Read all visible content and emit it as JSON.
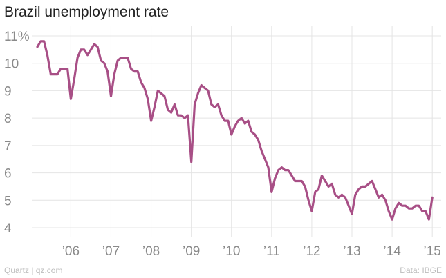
{
  "chart_data": {
    "type": "line",
    "title": "Brazil unemployment rate",
    "xlabel": "",
    "ylabel": "",
    "ylim": [
      4,
      11
    ],
    "xlim": [
      2005.167,
      2015.083
    ],
    "y_ticks": [
      {
        "value": 4,
        "label": "4"
      },
      {
        "value": 5,
        "label": "5"
      },
      {
        "value": 6,
        "label": "6"
      },
      {
        "value": 7,
        "label": "7"
      },
      {
        "value": 8,
        "label": "8"
      },
      {
        "value": 9,
        "label": "9"
      },
      {
        "value": 10,
        "label": "10"
      },
      {
        "value": 11,
        "label": "11%"
      }
    ],
    "x_ticks": [
      {
        "value": 2006,
        "label": "’06"
      },
      {
        "value": 2007,
        "label": "’07"
      },
      {
        "value": 2008,
        "label": "’08"
      },
      {
        "value": 2009,
        "label": "’09"
      },
      {
        "value": 2010,
        "label": "’10"
      },
      {
        "value": 2011,
        "label": "’11"
      },
      {
        "value": 2012,
        "label": "’12"
      },
      {
        "value": 2013,
        "label": "’13"
      },
      {
        "value": 2014,
        "label": "’14"
      },
      {
        "value": 2015,
        "label": "’15"
      }
    ],
    "grid": true,
    "series": [
      {
        "color": "#a84f86",
        "x_start": 2005.167,
        "x_step": 0.08333,
        "values": [
          10.6,
          10.8,
          10.8,
          10.3,
          9.6,
          9.6,
          9.6,
          9.8,
          9.8,
          9.8,
          8.7,
          9.4,
          10.2,
          10.5,
          10.5,
          10.3,
          10.5,
          10.7,
          10.6,
          10.1,
          10.0,
          9.7,
          8.8,
          9.6,
          10.1,
          10.2,
          10.2,
          10.2,
          9.8,
          9.7,
          9.7,
          9.3,
          9.1,
          8.7,
          7.9,
          8.4,
          9.0,
          8.9,
          8.8,
          8.3,
          8.2,
          8.5,
          8.1,
          8.1,
          8.0,
          8.1,
          6.4,
          8.5,
          8.9,
          9.2,
          9.1,
          9.0,
          8.5,
          8.4,
          8.5,
          8.1,
          7.9,
          7.9,
          7.4,
          7.7,
          7.9,
          8.0,
          7.8,
          7.9,
          7.5,
          7.4,
          7.2,
          6.8,
          6.5,
          6.2,
          5.3,
          5.8,
          6.1,
          6.2,
          6.1,
          6.1,
          5.9,
          5.7,
          5.7,
          5.7,
          5.5,
          5.0,
          4.6,
          5.3,
          5.4,
          5.9,
          5.7,
          5.5,
          5.6,
          5.2,
          5.1,
          5.2,
          5.1,
          4.8,
          4.5,
          5.2,
          5.4,
          5.5,
          5.5,
          5.6,
          5.7,
          5.4,
          5.1,
          5.2,
          5.0,
          4.6,
          4.3,
          4.7,
          4.9,
          4.8,
          4.8,
          4.7,
          4.7,
          4.8,
          4.8,
          4.6,
          4.6,
          4.3,
          5.1
        ]
      }
    ]
  },
  "footer": {
    "source_left": "Quartz | qz.com",
    "source_right": "Data: IBGE"
  }
}
